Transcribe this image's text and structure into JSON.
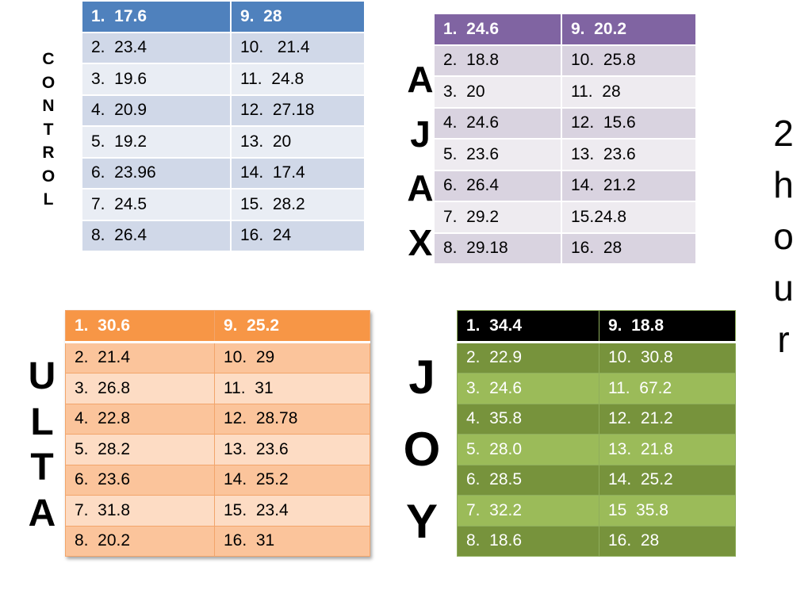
{
  "control": {
    "label": "C\nO\nN\nT\nR\nO\nL",
    "rows": [
      [
        "1.  17.6",
        "9.  28"
      ],
      [
        "2.  23.4",
        "10.   21.4"
      ],
      [
        "3.  19.6",
        "11.  24.8"
      ],
      [
        "4.  20.9",
        "12.  27.18"
      ],
      [
        "5.  19.2",
        "13.  20"
      ],
      [
        "6.  23.96",
        "14.  17.4"
      ],
      [
        "7.  24.5",
        "15.  28.2"
      ],
      [
        "8.  26.4",
        "16.  24"
      ]
    ]
  },
  "ajax": {
    "label": "A\nJ\nA\nX",
    "rows": [
      [
        "1.  24.6",
        "9.  20.2"
      ],
      [
        "2.  18.8",
        "10.  25.8"
      ],
      [
        "3.  20",
        "11.  28"
      ],
      [
        "4.  24.6",
        "12.  15.6"
      ],
      [
        "5.  23.6",
        "13.  23.6"
      ],
      [
        "6.  26.4",
        "14.  21.2"
      ],
      [
        "7.  29.2",
        "15.24.8"
      ],
      [
        "8.  29.18",
        "16.  28"
      ]
    ]
  },
  "ulta": {
    "label": "U\nL\nT\nA",
    "rows": [
      [
        "1.  30.6",
        "9.  25.2"
      ],
      [
        "2.  21.4",
        "10.  29"
      ],
      [
        "3.  26.8",
        "11.  31"
      ],
      [
        "4.  22.8",
        "12.  28.78"
      ],
      [
        "5.  28.2",
        "13.  23.6"
      ],
      [
        "6.  23.6",
        "14.  25.2"
      ],
      [
        "7.  31.8",
        "15.  23.4"
      ],
      [
        "8.  20.2",
        "16.  31"
      ]
    ]
  },
  "joy": {
    "label": "J\nO\nY",
    "rows": [
      [
        "1.  34.4",
        "9.  18.8"
      ],
      [
        "2.  22.9",
        "10.  30.8"
      ],
      [
        "3.  24.6",
        "11.  67.2"
      ],
      [
        "4.  35.8",
        "12.  21.2"
      ],
      [
        "5.  28.0",
        "13.  21.8"
      ],
      [
        "6.  28.5",
        "14.  25.2"
      ],
      [
        "7.  32.2",
        "15  35.8"
      ],
      [
        "8.  18.6",
        "16.  28"
      ]
    ]
  },
  "side_label": "2\nh\no\nu\nr",
  "colors": {
    "control_header": "#4f81bd",
    "ajax_header": "#8064a2",
    "ulta_header": "#f79646",
    "joy_header": "#000000",
    "joy_rows": "#77933c"
  }
}
